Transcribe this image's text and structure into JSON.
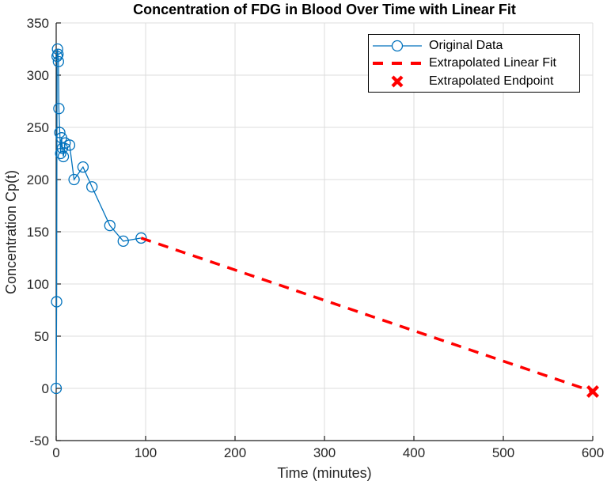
{
  "figure": {
    "title": "Concentration of FDG in Blood Over Time with Linear Fit",
    "xlabel": "Time (minutes)",
    "ylabel": "Concentration Cp(t)",
    "background_color": "#ffffff",
    "axis_color": "#1c1c1c",
    "tick_label_color": "#262626",
    "grid_color": "#dcdcdc"
  },
  "legend": {
    "position": "top-right",
    "items": [
      {
        "label": "Original Data",
        "marker": "line-with-circle",
        "color": "#0072BD"
      },
      {
        "label": "Extrapolated Linear Fit",
        "marker": "dashed-line",
        "color": "#FF0000"
      },
      {
        "label": "Extrapolated Endpoint",
        "marker": "x",
        "color": "#FF0000"
      }
    ]
  },
  "chart_data": {
    "type": "line",
    "title": "Concentration of FDG in Blood Over Time with Linear Fit",
    "xlabel": "Time (minutes)",
    "ylabel": "Concentration Cp(t)",
    "xlim": [
      0,
      600
    ],
    "ylim": [
      -50,
      350
    ],
    "xticks": [
      0,
      100,
      200,
      300,
      400,
      500,
      600
    ],
    "yticks": [
      -50,
      0,
      50,
      100,
      150,
      200,
      250,
      300,
      350
    ],
    "grid": true,
    "legend_position": "top-right",
    "series": [
      {
        "name": "Original Data",
        "style": "solid-line-with-circle-markers",
        "color": "#0072BD",
        "x": [
          0,
          0.5,
          1,
          1.5,
          2,
          2.5,
          3,
          4,
          5,
          6,
          7,
          8,
          10,
          15,
          20,
          30,
          40,
          60,
          75,
          95
        ],
        "y": [
          0,
          83,
          318,
          325,
          320,
          313,
          268,
          245,
          225,
          240,
          230,
          222,
          235,
          233,
          200,
          212,
          193,
          156,
          141,
          144
        ]
      },
      {
        "name": "Extrapolated Linear Fit",
        "style": "dashed-line",
        "color": "#FF0000",
        "x": [
          95,
          600
        ],
        "y": [
          144,
          -3
        ]
      },
      {
        "name": "Extrapolated Endpoint",
        "style": "x-marker",
        "color": "#FF0000",
        "x": [
          600
        ],
        "y": [
          -3
        ]
      }
    ]
  }
}
